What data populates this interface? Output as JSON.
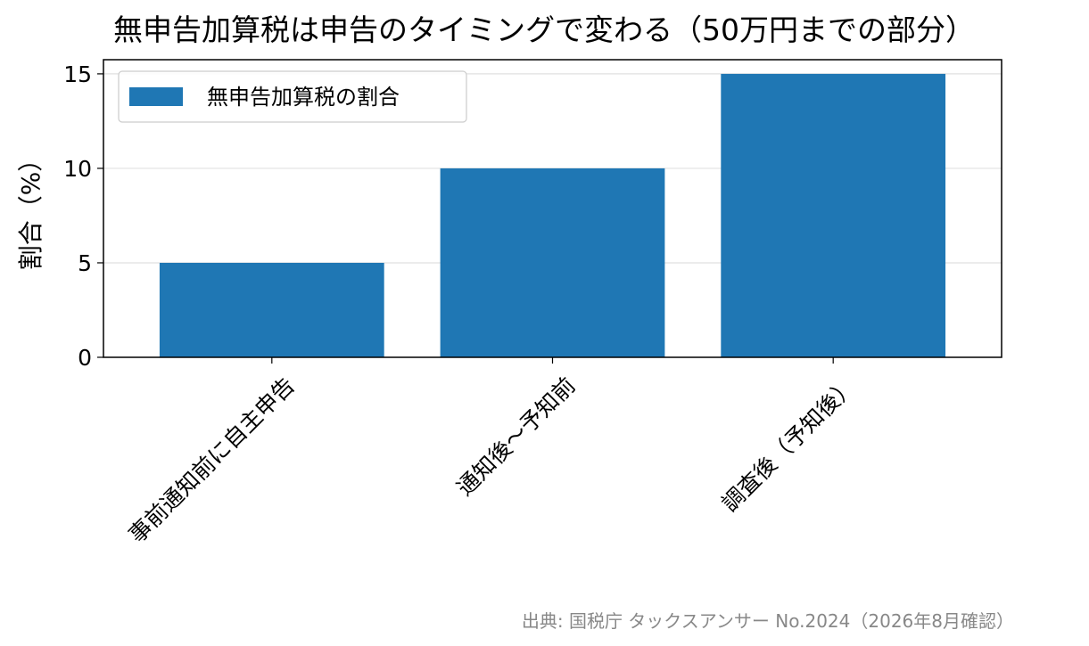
{
  "chart_data": {
    "type": "bar",
    "title": "無申告加算税は申告のタイミングで変わる（50万円までの部分）",
    "categories": [
      "事前通知前に自主申告",
      "通知後〜予知前",
      "調査後（予知後）"
    ],
    "series": [
      {
        "name": "無申告加算税の割合",
        "values": [
          5,
          10,
          15
        ],
        "color": "#1f77b4"
      }
    ],
    "xlabel": "",
    "ylabel": "割合（%）",
    "ylim": [
      0,
      15.75
    ],
    "yticks": [
      0,
      5,
      10,
      15
    ],
    "grid": "y",
    "legend": "top-left"
  },
  "source_note": "出典: 国税庁 タックスアンサー No.2024（2026年8月確認）"
}
